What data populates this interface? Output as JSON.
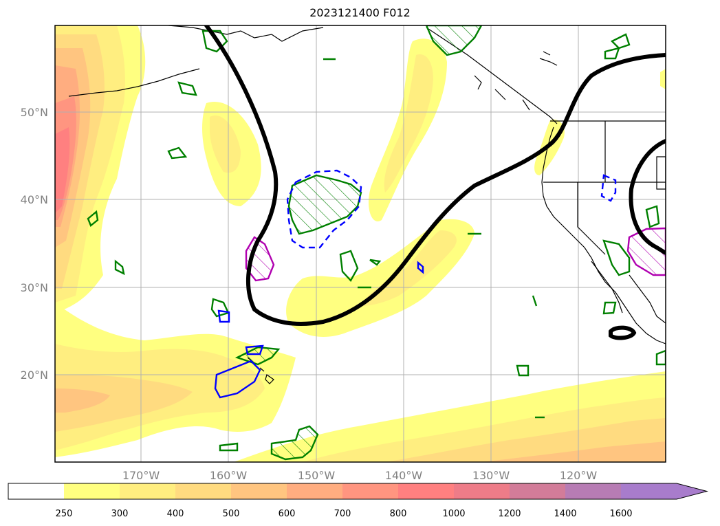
{
  "title": "2023121400 F012",
  "lat_labels": [
    "50°N",
    "40°N",
    "30°N",
    "20°N"
  ],
  "lon_labels": [
    "170°W",
    "160°W",
    "150°W",
    "140°W",
    "130°W",
    "120°W"
  ],
  "colorbar": {
    "levels": [
      "250",
      "300",
      "400",
      "500",
      "600",
      "700",
      "800",
      "1000",
      "1200",
      "1400",
      "1600"
    ],
    "colors": [
      "#ffffff",
      "#ffff80",
      "#ffee80",
      "#ffdb80",
      "#ffc580",
      "#ffad80",
      "#ff9580",
      "#ff8080",
      "#ee7c88",
      "#d27c99",
      "#b77cb4",
      "#a87ccc"
    ]
  },
  "legend_colors": {
    "contour_thick": "#000000",
    "contour_green": "#008000",
    "contour_blue": "#0000ff",
    "contour_magenta": "#b000b0",
    "coastline": "#000000",
    "grid": "#b0b0b0"
  }
}
